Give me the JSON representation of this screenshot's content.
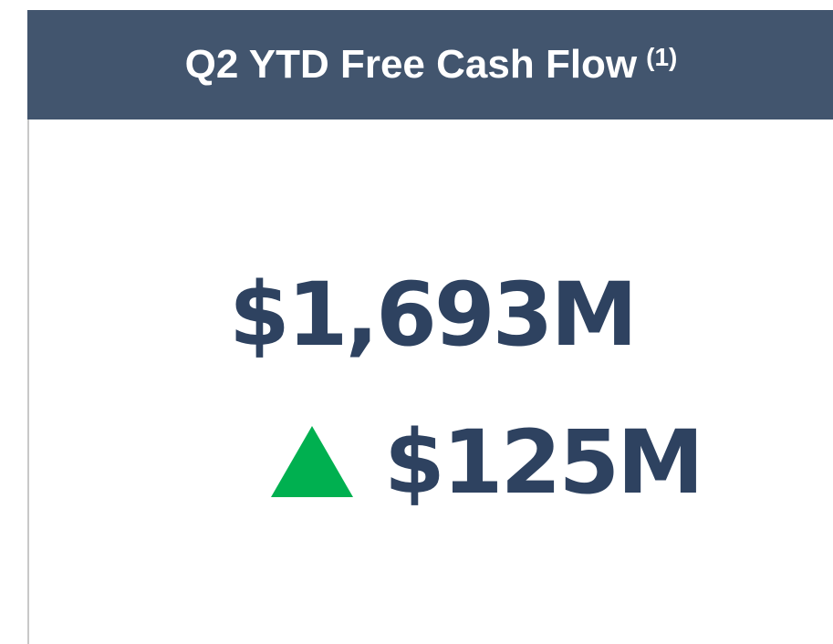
{
  "header": {
    "title": "Q2 YTD Free Cash Flow",
    "footnote": "(1)"
  },
  "metric": {
    "value": "$1,693M",
    "change": "$125M"
  }
}
